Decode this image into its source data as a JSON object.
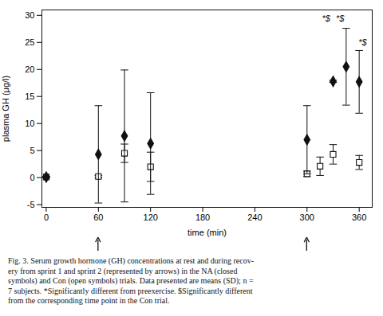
{
  "chart_data": {
    "type": "scatter",
    "xlabel": "time (min)",
    "ylabel": "plasma GH (μg/l)",
    "xlim": [
      -5,
      375
    ],
    "ylim": [
      -5.5,
      31
    ],
    "xticks": [
      0,
      60,
      120,
      180,
      240,
      300,
      360
    ],
    "yticks": [
      -5,
      0,
      5,
      10,
      15,
      20,
      25,
      30
    ],
    "grid": false,
    "color": "#111111",
    "series": [
      {
        "marker": "open_square",
        "color": "#111111",
        "x": [
          0,
          60,
          90,
          120,
          300,
          315,
          330,
          360
        ],
        "values": [
          0.1,
          0.2,
          4.5,
          2.0,
          0.7,
          2.1,
          4.3,
          2.8
        ],
        "yerr": [
          0.1,
          0.2,
          1.7,
          2.7,
          0.5,
          1.7,
          1.8,
          1.3
        ]
      },
      {
        "marker": "diamond",
        "color": "#111111",
        "x": [
          0,
          60,
          90,
          120,
          300,
          330,
          345,
          360
        ],
        "values": [
          0.1,
          4.3,
          7.7,
          6.3,
          7.0,
          17.8,
          20.5,
          17.7
        ],
        "yerr": [
          0.1,
          9.0,
          12.2,
          9.4,
          6.3,
          0.2,
          7.1,
          5.8
        ]
      }
    ],
    "annotations": [
      {
        "x": 322,
        "y": 28.8,
        "text": "*$"
      },
      {
        "x": 338,
        "y": 28.8,
        "text": "*$"
      },
      {
        "x": 364,
        "y": 24.5,
        "text": "*$"
      }
    ],
    "arrows_x": [
      60,
      300
    ],
    "caption": [
      "Fig. 3.  Serum growth hormone (GH) concentrations at rest and during recov-",
      "ery from sprint 1 and sprint 2 (represented by arrows) in the NA (closed",
      "symbols) and Con (open symbols) trials. Data presented are means (SD); n =",
      "7 subjects. *Significantly different from preexercise. $Significantly different",
      "from the corresponding time point in the Con trial."
    ]
  }
}
